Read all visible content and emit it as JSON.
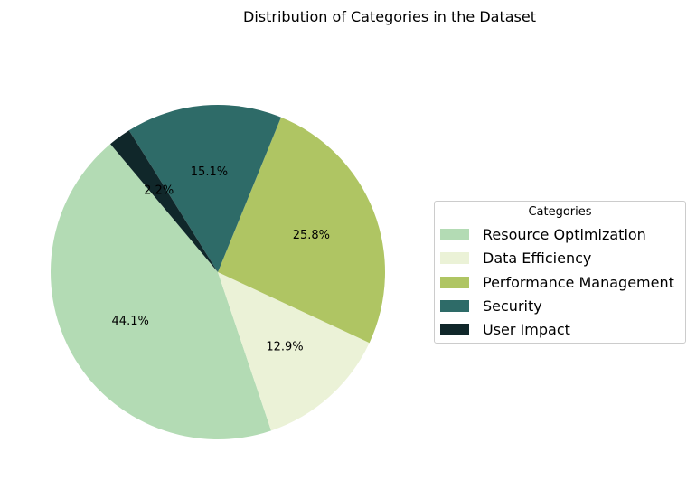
{
  "chart_data": {
    "type": "pie",
    "title": "Distribution of Categories in the Dataset",
    "legend_title": "Categories",
    "legend_position": "right",
    "slices": [
      {
        "label": "Resource Optimization",
        "value": 44.1,
        "pct_label": "44.1%",
        "color": "#b3dbb4"
      },
      {
        "label": "Data Efficiency",
        "value": 12.9,
        "pct_label": "12.9%",
        "color": "#ebf2d7"
      },
      {
        "label": "Performance Management",
        "value": 25.8,
        "pct_label": "25.8%",
        "color": "#afc563"
      },
      {
        "label": "Security",
        "value": 15.1,
        "pct_label": "15.1%",
        "color": "#2e6b68"
      },
      {
        "label": "User Impact",
        "value": 2.2,
        "pct_label": "2.2%",
        "color": "#10272a"
      }
    ]
  }
}
